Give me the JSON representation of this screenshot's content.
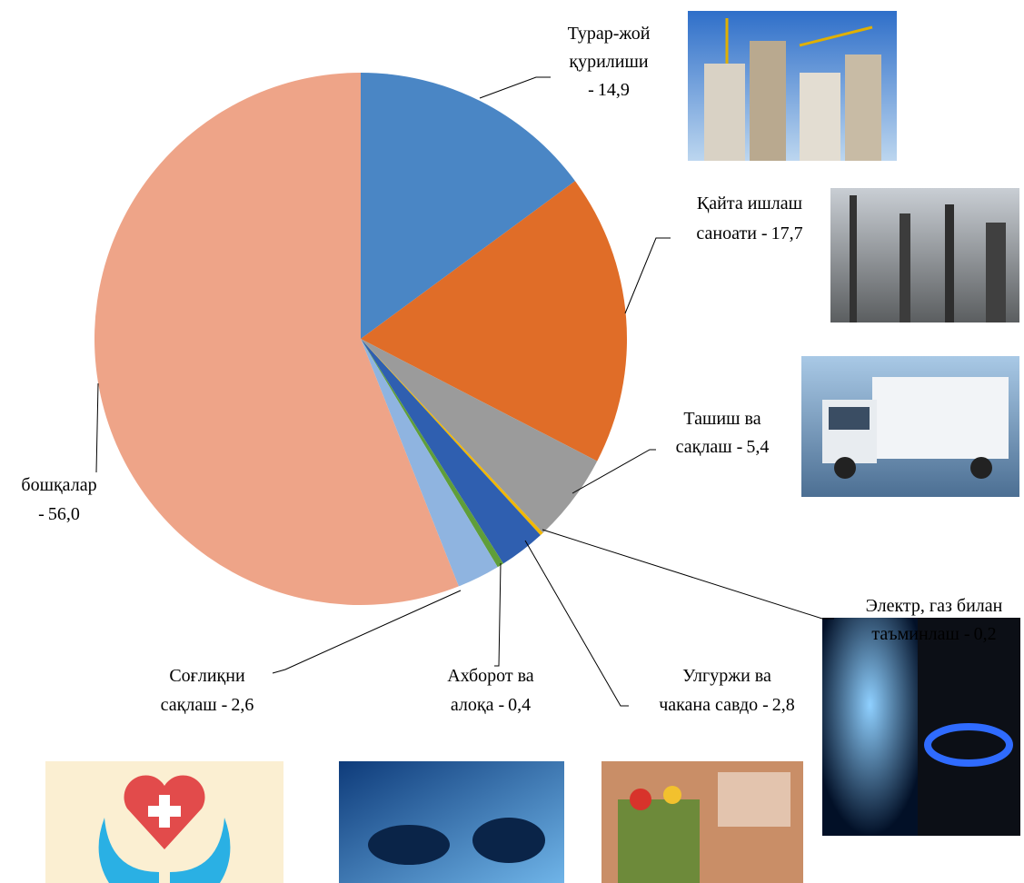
{
  "chart_data": {
    "type": "pie",
    "categories": [
      [
        "Турар-жой",
        "қурилиши",
        "-"
      ],
      [
        "Қайта ишлаш",
        "саноати -"
      ],
      [
        "Ташиш ва",
        "сақлаш -"
      ],
      [
        "Электр, газ билан",
        "таъминлаш -"
      ],
      [
        "Улгуржи ва",
        "чакана савдо -"
      ],
      [
        "Ахборот ва",
        "алоқа -"
      ],
      [
        "Соғлиқни",
        "сақлаш -"
      ],
      [
        "бошқалар",
        "-"
      ]
    ],
    "values": [
      14.9,
      17.7,
      5.4,
      0.2,
      2.8,
      0.4,
      2.6,
      56.0
    ],
    "value_labels": [
      "14,9",
      "17,7",
      "5,4",
      "0,2",
      "2,8",
      "0,4",
      "2,6",
      "56,0"
    ],
    "colors": [
      "#4a86c5",
      "#e06d28",
      "#9b9b9b",
      "#f2b800",
      "#2f5fb0",
      "#5f9e3a",
      "#8fb4e0",
      "#eea488"
    ]
  }
}
